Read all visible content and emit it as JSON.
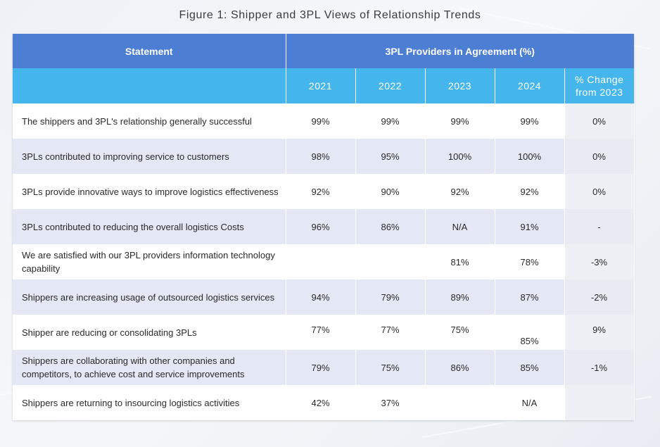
{
  "figure_title": "Figure 1: Shipper and 3PL Views of Relationship Trends",
  "header": {
    "statement": "Statement",
    "group": "3PL Providers in Agreement (%)",
    "years": [
      "2021",
      "2022",
      "2023",
      "2024"
    ],
    "change_line1": "% Change",
    "change_line2": "from 2023"
  },
  "rows": [
    {
      "statement": "The shippers and 3PL's relationship generally successful",
      "y2021": "99%",
      "y2022": "99%",
      "y2023": "99%",
      "y2024": "99%",
      "change": "0%"
    },
    {
      "statement": "3PLs contributed to improving service to customers",
      "y2021": "98%",
      "y2022": "95%",
      "y2023": "100%",
      "y2024": "100%",
      "change": "0%"
    },
    {
      "statement": "3PLs provide innovative ways to improve logistics effectiveness",
      "y2021": "92%",
      "y2022": "90%",
      "y2023": "92%",
      "y2024": "92%",
      "change": "0%"
    },
    {
      "statement": "3PLs contributed to reducing the overall logistics Costs",
      "y2021": "96%",
      "y2022": "86%",
      "y2023": "N/A",
      "y2024": "91%",
      "change": "-"
    },
    {
      "statement": "We are satisfied with our 3PL providers information technology capability",
      "y2021": "",
      "y2022": "",
      "y2023": "81%",
      "y2024": "78%",
      "change": "-3%"
    },
    {
      "statement": "Shippers are increasing usage of outsourced logistics services",
      "y2021": "94%",
      "y2022": "79%",
      "y2023": "89%",
      "y2024": "87%",
      "change": "-2%"
    },
    {
      "statement": "Shipper are reducing or consolidating 3PLs",
      "y2021": "77%",
      "y2022": "77%",
      "y2023": "75%",
      "y2024": "85%",
      "change": "9%"
    },
    {
      "statement": "Shippers are collaborating with other companies and competitors, to achieve cost and service improvements",
      "y2021": "79%",
      "y2022": "75%",
      "y2023": "86%",
      "y2024": "85%",
      "change": "-1%"
    },
    {
      "statement": "Shippers are returning to insourcing logistics activities",
      "y2021": "42%",
      "y2022": "37%",
      "y2023": "",
      "y2024": "N/A",
      "change": ""
    }
  ]
}
